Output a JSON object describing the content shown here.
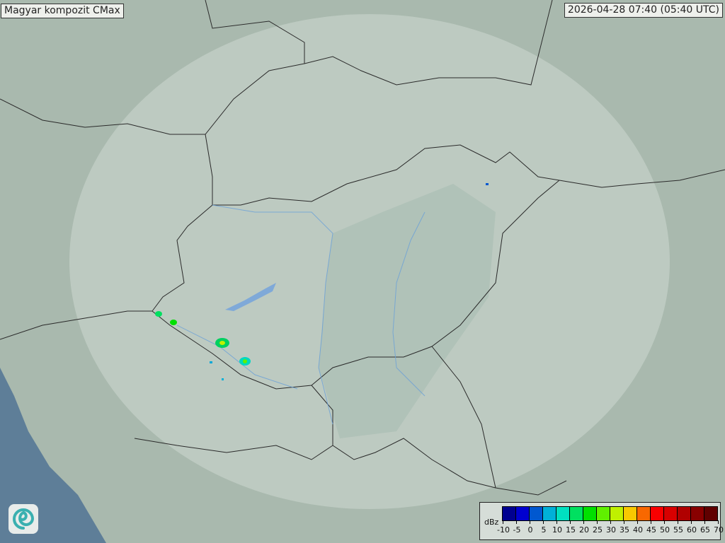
{
  "title": "Magyar kompozit  CMax",
  "timestamp": "2026-04-28 07:40 (05:40 UTC)",
  "legend": {
    "unit": "dBz",
    "ticks": [
      "-10",
      "-5",
      "0",
      "5",
      "10",
      "15",
      "20",
      "25",
      "30",
      "35",
      "40",
      "45",
      "50",
      "55",
      "60",
      "65",
      "70"
    ],
    "colors": [
      "#000090",
      "#0000d0",
      "#0058d0",
      "#00b0d8",
      "#00e0c0",
      "#00e060",
      "#00e000",
      "#60f000",
      "#c0f000",
      "#f8c800",
      "#f86800",
      "#f80000",
      "#d80000",
      "#b00000",
      "#880000",
      "#600000"
    ]
  },
  "logo": {
    "icon": "swirl-logo-icon"
  },
  "colors": {
    "land": "#a9b9ae",
    "coverage": "#c4d2ca",
    "sea": "#5e7e98",
    "border": "#2a2a2a",
    "river": "#6aa0d8"
  }
}
